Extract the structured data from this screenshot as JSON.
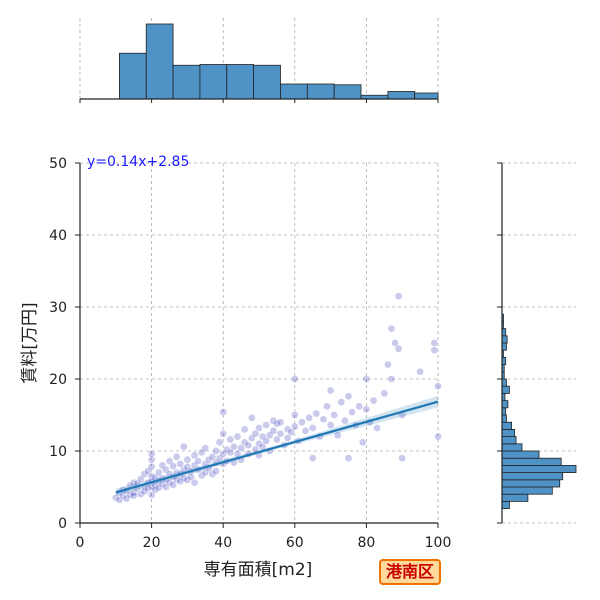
{
  "chart_data": {
    "type": "scatter",
    "title": "",
    "xlabel": "専有面積[m2]",
    "ylabel": "賃料[万円]",
    "xlim": [
      0,
      100
    ],
    "ylim": [
      0,
      50
    ],
    "x_ticks": [
      "0",
      "20",
      "40",
      "60",
      "80",
      "100"
    ],
    "y_ticks": [
      "0",
      "10",
      "20",
      "30",
      "40",
      "50"
    ],
    "grid": true,
    "regression": {
      "label": "y=0.14x+2.85",
      "slope": 0.14,
      "intercept": 2.85,
      "x_range": [
        10,
        100
      ],
      "color": "#1f77b4"
    },
    "scatter_color": "#4040c0",
    "hist_color": "#4f93c6",
    "marginal_x_hist": {
      "bin_width": 7.5,
      "bins_start": [
        11,
        18.5,
        26,
        33.5,
        41,
        48.5,
        56,
        63.5,
        71,
        78.5,
        86,
        93.5
      ],
      "relative_heights": [
        0.61,
        1.0,
        0.45,
        0.46,
        0.46,
        0.45,
        0.2,
        0.2,
        0.19,
        0.05,
        0.1,
        0.08
      ]
    },
    "marginal_y_hist": {
      "bin_width": 1.0,
      "bins_start": [
        2,
        3,
        4,
        5,
        6,
        7,
        8,
        9,
        10,
        11,
        12,
        13,
        14,
        15,
        16,
        17,
        18,
        19,
        20,
        21,
        22,
        23,
        24,
        25,
        26,
        27,
        28
      ],
      "relative_heights": [
        0.1,
        0.35,
        0.68,
        0.78,
        0.82,
        1.0,
        0.8,
        0.5,
        0.27,
        0.19,
        0.17,
        0.13,
        0.06,
        0.05,
        0.08,
        0.04,
        0.1,
        0.06,
        0.03,
        0.03,
        0.05,
        0.02,
        0.06,
        0.07,
        0.05,
        0.02,
        0.02
      ]
    },
    "points": [
      [
        10,
        3.5
      ],
      [
        11,
        3.2
      ],
      [
        11,
        4.2
      ],
      [
        12,
        3.8
      ],
      [
        12,
        4.6
      ],
      [
        13,
        3.4
      ],
      [
        13,
        4.5
      ],
      [
        14,
        3.9
      ],
      [
        14,
        5.2
      ],
      [
        15,
        4.2
      ],
      [
        15,
        5.6
      ],
      [
        15,
        3.8
      ],
      [
        16,
        4.8
      ],
      [
        16,
        5.5
      ],
      [
        17,
        4.0
      ],
      [
        17,
        6.1
      ],
      [
        18,
        5.0
      ],
      [
        18,
        4.4
      ],
      [
        18,
        6.8
      ],
      [
        19,
        5.6
      ],
      [
        19,
        4.8
      ],
      [
        19,
        7.2
      ],
      [
        20,
        3.9
      ],
      [
        20,
        5.0
      ],
      [
        20,
        6.5
      ],
      [
        20,
        7.8
      ],
      [
        20,
        8.8
      ],
      [
        20,
        9.6
      ],
      [
        20,
        5.8
      ],
      [
        21,
        5.2
      ],
      [
        21,
        6.3
      ],
      [
        21,
        4.6
      ],
      [
        22,
        5.8
      ],
      [
        22,
        7.0
      ],
      [
        22,
        4.9
      ],
      [
        23,
        6.2
      ],
      [
        23,
        5.4
      ],
      [
        23,
        8.0
      ],
      [
        24,
        6.0
      ],
      [
        24,
        7.4
      ],
      [
        24,
        5.0
      ],
      [
        25,
        6.8
      ],
      [
        25,
        5.6
      ],
      [
        25,
        8.6
      ],
      [
        26,
        6.4
      ],
      [
        26,
        7.9
      ],
      [
        26,
        5.3
      ],
      [
        27,
        7.0
      ],
      [
        27,
        6.0
      ],
      [
        27,
        9.2
      ],
      [
        28,
        6.8
      ],
      [
        28,
        8.2
      ],
      [
        28,
        5.8
      ],
      [
        29,
        7.4
      ],
      [
        29,
        6.2
      ],
      [
        29,
        10.6
      ],
      [
        30,
        6.0
      ],
      [
        30,
        7.8
      ],
      [
        30,
        8.8
      ],
      [
        31,
        7.2
      ],
      [
        31,
        6.4
      ],
      [
        32,
        8.0
      ],
      [
        32,
        9.4
      ],
      [
        32,
        5.6
      ],
      [
        33,
        7.4
      ],
      [
        33,
        8.6
      ],
      [
        34,
        6.6
      ],
      [
        34,
        9.8
      ],
      [
        35,
        8.2
      ],
      [
        35,
        7.0
      ],
      [
        35,
        10.4
      ],
      [
        36,
        8.8
      ],
      [
        36,
        7.6
      ],
      [
        37,
        9.2
      ],
      [
        37,
        6.8
      ],
      [
        38,
        8.4
      ],
      [
        38,
        10.0
      ],
      [
        38,
        7.2
      ],
      [
        39,
        9.0
      ],
      [
        39,
        11.2
      ],
      [
        40,
        8.2
      ],
      [
        40,
        9.6
      ],
      [
        40,
        12.4
      ],
      [
        40,
        15.4
      ],
      [
        41,
        10.2
      ],
      [
        41,
        8.6
      ],
      [
        42,
        9.8
      ],
      [
        42,
        11.6
      ],
      [
        43,
        8.4
      ],
      [
        43,
        10.6
      ],
      [
        44,
        9.6
      ],
      [
        44,
        12.0
      ],
      [
        45,
        10.4
      ],
      [
        45,
        8.8
      ],
      [
        46,
        11.2
      ],
      [
        46,
        13.0
      ],
      [
        47,
        9.6
      ],
      [
        47,
        10.8
      ],
      [
        48,
        11.8
      ],
      [
        48,
        14.6
      ],
      [
        49,
        10.2
      ],
      [
        49,
        12.4
      ],
      [
        50,
        11.0
      ],
      [
        50,
        13.2
      ],
      [
        50,
        9.4
      ],
      [
        51,
        12.0
      ],
      [
        51,
        10.6
      ],
      [
        52,
        13.6
      ],
      [
        52,
        11.4
      ],
      [
        53,
        12.2
      ],
      [
        53,
        10.0
      ],
      [
        54,
        14.2
      ],
      [
        54,
        12.8
      ],
      [
        55,
        11.6
      ],
      [
        55,
        13.8
      ],
      [
        56,
        12.4
      ],
      [
        56,
        14.0
      ],
      [
        57,
        10.8
      ],
      [
        58,
        13.0
      ],
      [
        58,
        11.8
      ],
      [
        59,
        12.6
      ],
      [
        60,
        13.4
      ],
      [
        60,
        15.0
      ],
      [
        60,
        20.0
      ],
      [
        61,
        11.4
      ],
      [
        62,
        14.0
      ],
      [
        63,
        12.8
      ],
      [
        64,
        14.6
      ],
      [
        65,
        13.2
      ],
      [
        65,
        9.0
      ],
      [
        66,
        15.2
      ],
      [
        67,
        12.0
      ],
      [
        68,
        14.4
      ],
      [
        69,
        16.2
      ],
      [
        70,
        13.6
      ],
      [
        70,
        18.4
      ],
      [
        71,
        15.0
      ],
      [
        72,
        12.2
      ],
      [
        73,
        16.8
      ],
      [
        74,
        14.2
      ],
      [
        75,
        17.6
      ],
      [
        75,
        9.0
      ],
      [
        76,
        15.4
      ],
      [
        77,
        13.6
      ],
      [
        78,
        16.2
      ],
      [
        79,
        11.2
      ],
      [
        80,
        15.8
      ],
      [
        80,
        20.0
      ],
      [
        81,
        14.0
      ],
      [
        82,
        17.0
      ],
      [
        83,
        13.2
      ],
      [
        85,
        18.0
      ],
      [
        86,
        22.0
      ],
      [
        87,
        20.0
      ],
      [
        87,
        27.0
      ],
      [
        88,
        25.0
      ],
      [
        89,
        24.2
      ],
      [
        89,
        31.5
      ],
      [
        90,
        9.0
      ],
      [
        90,
        15.0
      ],
      [
        95,
        21.0
      ],
      [
        99,
        25.0
      ],
      [
        99,
        24.0
      ],
      [
        100,
        19.0
      ],
      [
        100,
        12.0
      ]
    ]
  },
  "ward_label": "港南区"
}
